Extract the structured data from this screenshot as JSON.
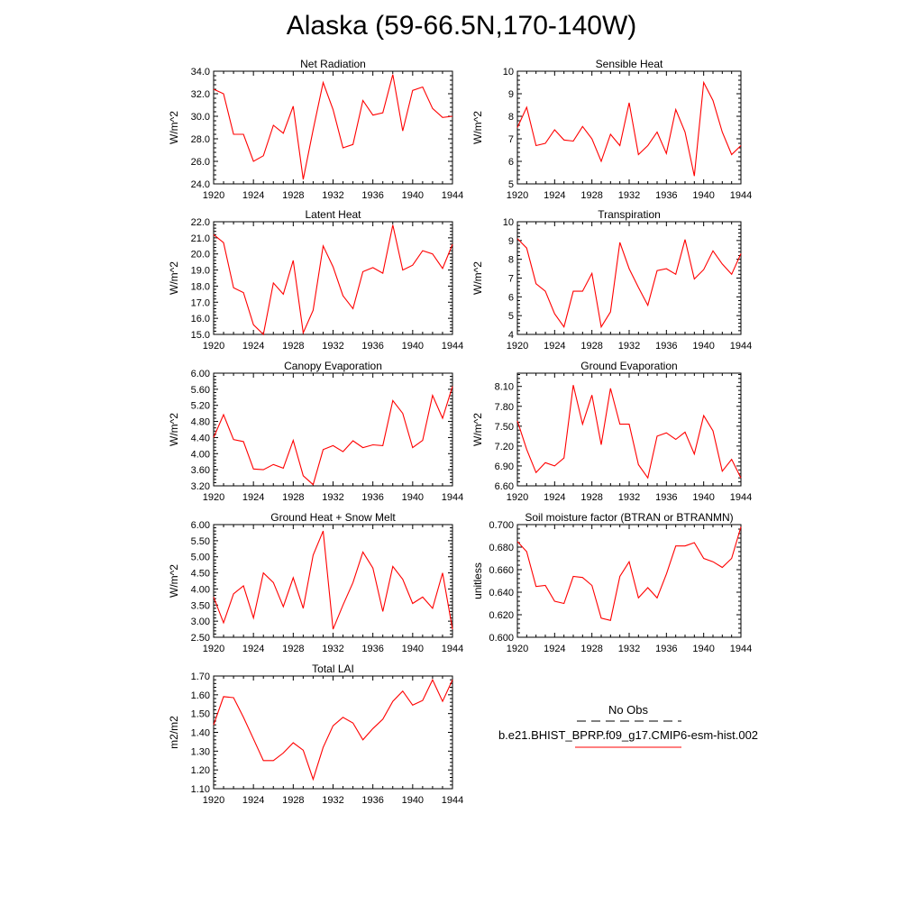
{
  "title": "Alaska (59-66.5N,170-140W)",
  "colors": {
    "model_line": "#ff0000",
    "obs_line": "#000000",
    "axis": "#000000"
  },
  "legend": {
    "obs_label": "No Obs",
    "model_label": "b.e21.BHIST_BPRP.f09_g17.CMIP6-esm-hist.002"
  },
  "chart_data": [
    {
      "type": "line",
      "title": "Net Radiation",
      "ylabel": "W/m^2",
      "xlabel": "",
      "xlim": [
        1920,
        1944
      ],
      "ylim": [
        24,
        34
      ],
      "xticks": [
        "1920",
        "1924",
        "1928",
        "1932",
        "1936",
        "1940",
        "1944"
      ],
      "yticks": [
        "24.0",
        "26.0",
        "28.0",
        "30.0",
        "32.0",
        "34.0"
      ],
      "x": [
        1920,
        1921,
        1922,
        1923,
        1924,
        1925,
        1926,
        1927,
        1928,
        1929,
        1930,
        1931,
        1932,
        1933,
        1934,
        1935,
        1936,
        1937,
        1938,
        1939,
        1940,
        1941,
        1942,
        1943,
        1944
      ],
      "series": [
        {
          "values": [
            32.4,
            32.0,
            28.4,
            28.4,
            26.0,
            26.5,
            29.2,
            28.5,
            30.9,
            24.4,
            28.8,
            33.0,
            30.6,
            27.2,
            27.5,
            31.4,
            30.1,
            30.3,
            33.7,
            28.7,
            32.3,
            32.6,
            30.7,
            29.9,
            30.0
          ]
        }
      ]
    },
    {
      "type": "line",
      "title": "Sensible Heat",
      "ylabel": "W/m^2",
      "xlabel": "",
      "xlim": [
        1920,
        1944
      ],
      "ylim": [
        5,
        10
      ],
      "xticks": [
        "1920",
        "1924",
        "1928",
        "1932",
        "1936",
        "1940",
        "1944"
      ],
      "yticks": [
        "5",
        "6",
        "7",
        "8",
        "9",
        "10"
      ],
      "x": [
        1920,
        1921,
        1922,
        1923,
        1924,
        1925,
        1926,
        1927,
        1928,
        1929,
        1930,
        1931,
        1932,
        1933,
        1934,
        1935,
        1936,
        1937,
        1938,
        1939,
        1940,
        1941,
        1942,
        1943,
        1944
      ],
      "series": [
        {
          "values": [
            7.5,
            8.4,
            6.7,
            6.8,
            7.4,
            6.95,
            6.9,
            7.55,
            7.0,
            6.0,
            7.2,
            6.7,
            8.6,
            6.3,
            6.7,
            7.3,
            6.35,
            8.3,
            7.3,
            5.35,
            9.5,
            8.7,
            7.3,
            6.3,
            6.7
          ]
        }
      ]
    },
    {
      "type": "line",
      "title": "Latent Heat",
      "ylabel": "W/m^2",
      "xlabel": "",
      "xlim": [
        1920,
        1944
      ],
      "ylim": [
        15,
        22
      ],
      "xticks": [
        "1920",
        "1924",
        "1928",
        "1932",
        "1936",
        "1940",
        "1944"
      ],
      "yticks": [
        "15.0",
        "16.0",
        "17.0",
        "18.0",
        "19.0",
        "20.0",
        "21.0",
        "22.0"
      ],
      "x": [
        1920,
        1921,
        1922,
        1923,
        1924,
        1925,
        1926,
        1927,
        1928,
        1929,
        1930,
        1931,
        1932,
        1933,
        1934,
        1935,
        1936,
        1937,
        1938,
        1939,
        1940,
        1941,
        1942,
        1943,
        1944
      ],
      "series": [
        {
          "values": [
            21.2,
            20.7,
            17.9,
            17.6,
            15.6,
            15.0,
            18.2,
            17.5,
            19.6,
            15.1,
            16.5,
            20.5,
            19.2,
            17.4,
            16.6,
            18.9,
            19.15,
            18.8,
            21.8,
            19.0,
            19.3,
            20.2,
            20.0,
            19.1,
            20.6
          ]
        }
      ]
    },
    {
      "type": "line",
      "title": "Transpiration",
      "ylabel": "W/m^2",
      "xlabel": "",
      "xlim": [
        1920,
        1944
      ],
      "ylim": [
        4,
        10
      ],
      "xticks": [
        "1920",
        "1924",
        "1928",
        "1932",
        "1936",
        "1940",
        "1944"
      ],
      "yticks": [
        "4",
        "5",
        "6",
        "7",
        "8",
        "9",
        "10"
      ],
      "x": [
        1920,
        1921,
        1922,
        1923,
        1924,
        1925,
        1926,
        1927,
        1928,
        1929,
        1930,
        1931,
        1932,
        1933,
        1934,
        1935,
        1936,
        1937,
        1938,
        1939,
        1940,
        1941,
        1942,
        1943,
        1944
      ],
      "series": [
        {
          "values": [
            9.1,
            8.6,
            6.7,
            6.3,
            5.1,
            4.4,
            6.3,
            6.3,
            7.25,
            4.4,
            5.2,
            8.9,
            7.5,
            6.5,
            5.55,
            7.4,
            7.5,
            7.2,
            9.05,
            6.95,
            7.45,
            8.45,
            7.75,
            7.2,
            8.3
          ]
        }
      ]
    },
    {
      "type": "line",
      "title": "Canopy Evaporation",
      "ylabel": "W/m^2",
      "xlabel": "",
      "xlim": [
        1920,
        1944
      ],
      "ylim": [
        3.2,
        6.0
      ],
      "xticks": [
        "1920",
        "1924",
        "1928",
        "1932",
        "1936",
        "1940",
        "1944"
      ],
      "yticks": [
        "3.20",
        "3.60",
        "4.00",
        "4.40",
        "4.80",
        "5.20",
        "5.60",
        "6.00"
      ],
      "x": [
        1920,
        1921,
        1922,
        1923,
        1924,
        1925,
        1926,
        1927,
        1928,
        1929,
        1930,
        1931,
        1932,
        1933,
        1934,
        1935,
        1936,
        1937,
        1938,
        1939,
        1940,
        1941,
        1942,
        1943,
        1944
      ],
      "series": [
        {
          "values": [
            4.4,
            4.97,
            4.35,
            4.3,
            3.62,
            3.6,
            3.73,
            3.64,
            4.33,
            3.45,
            3.23,
            4.1,
            4.2,
            4.05,
            4.32,
            4.15,
            4.22,
            4.2,
            5.32,
            5.0,
            4.15,
            4.33,
            5.45,
            4.88,
            5.67
          ]
        }
      ]
    },
    {
      "type": "line",
      "title": "Ground Evaporation",
      "ylabel": "W/m^2",
      "xlabel": "",
      "xlim": [
        1920,
        1944
      ],
      "ylim": [
        6.6,
        8.3
      ],
      "xticks": [
        "1920",
        "1924",
        "1928",
        "1932",
        "1936",
        "1940",
        "1944"
      ],
      "yticks": [
        "6.60",
        "6.90",
        "7.20",
        "7.50",
        "7.80",
        "8.10"
      ],
      "x": [
        1920,
        1921,
        1922,
        1923,
        1924,
        1925,
        1926,
        1927,
        1928,
        1929,
        1930,
        1931,
        1932,
        1933,
        1934,
        1935,
        1936,
        1937,
        1938,
        1939,
        1940,
        1941,
        1942,
        1943,
        1944
      ],
      "series": [
        {
          "values": [
            7.58,
            7.15,
            6.8,
            6.95,
            6.9,
            7.02,
            8.12,
            7.53,
            7.97,
            7.22,
            8.07,
            7.53,
            7.53,
            6.92,
            6.72,
            7.35,
            7.4,
            7.3,
            7.41,
            7.08,
            7.66,
            7.43,
            6.82,
            7.0,
            6.72
          ]
        }
      ]
    },
    {
      "type": "line",
      "title": "Ground Heat + Snow Melt",
      "ylabel": "W/m^2",
      "xlabel": "",
      "xlim": [
        1920,
        1944
      ],
      "ylim": [
        2.5,
        6.0
      ],
      "xticks": [
        "1920",
        "1924",
        "1928",
        "1932",
        "1936",
        "1940",
        "1944"
      ],
      "yticks": [
        "2.50",
        "3.00",
        "3.50",
        "4.00",
        "4.50",
        "5.00",
        "5.50",
        "6.00"
      ],
      "x": [
        1920,
        1921,
        1922,
        1923,
        1924,
        1925,
        1926,
        1927,
        1928,
        1929,
        1930,
        1931,
        1932,
        1933,
        1934,
        1935,
        1936,
        1937,
        1938,
        1939,
        1940,
        1941,
        1942,
        1943,
        1944
      ],
      "series": [
        {
          "values": [
            3.75,
            2.95,
            3.85,
            4.1,
            3.1,
            4.5,
            4.2,
            3.45,
            4.35,
            3.4,
            5.05,
            5.8,
            2.75,
            3.5,
            4.2,
            5.15,
            4.65,
            3.3,
            4.7,
            4.3,
            3.55,
            3.75,
            3.4,
            4.5,
            2.75
          ]
        }
      ]
    },
    {
      "type": "line",
      "title": "Soil moisture factor (BTRAN or BTRANMN)",
      "ylabel": "unitless",
      "xlabel": "",
      "xlim": [
        1920,
        1944
      ],
      "ylim": [
        0.6,
        0.7
      ],
      "xticks": [
        "1920",
        "1924",
        "1928",
        "1932",
        "1936",
        "1940",
        "1944"
      ],
      "yticks": [
        "0.600",
        "0.620",
        "0.640",
        "0.660",
        "0.680",
        "0.700"
      ],
      "x": [
        1920,
        1921,
        1922,
        1923,
        1924,
        1925,
        1926,
        1927,
        1928,
        1929,
        1930,
        1931,
        1932,
        1933,
        1934,
        1935,
        1936,
        1937,
        1938,
        1939,
        1940,
        1941,
        1942,
        1943,
        1944
      ],
      "series": [
        {
          "values": [
            0.685,
            0.676,
            0.645,
            0.646,
            0.632,
            0.63,
            0.654,
            0.653,
            0.646,
            0.617,
            0.615,
            0.654,
            0.667,
            0.635,
            0.644,
            0.635,
            0.656,
            0.681,
            0.681,
            0.684,
            0.67,
            0.667,
            0.662,
            0.67,
            0.698
          ]
        }
      ]
    },
    {
      "type": "line",
      "title": "Total LAI",
      "ylabel": "m2/m2",
      "xlabel": "",
      "xlim": [
        1920,
        1944
      ],
      "ylim": [
        1.1,
        1.7
      ],
      "xticks": [
        "1920",
        "1924",
        "1928",
        "1932",
        "1936",
        "1940",
        "1944"
      ],
      "yticks": [
        "1.10",
        "1.20",
        "1.30",
        "1.40",
        "1.50",
        "1.60",
        "1.70"
      ],
      "x": [
        1920,
        1921,
        1922,
        1923,
        1924,
        1925,
        1926,
        1927,
        1928,
        1929,
        1930,
        1931,
        1932,
        1933,
        1934,
        1935,
        1936,
        1937,
        1938,
        1939,
        1940,
        1941,
        1942,
        1943,
        1944
      ],
      "series": [
        {
          "values": [
            1.44,
            1.59,
            1.585,
            1.48,
            1.365,
            1.25,
            1.25,
            1.29,
            1.345,
            1.305,
            1.15,
            1.32,
            1.435,
            1.48,
            1.45,
            1.36,
            1.42,
            1.47,
            1.565,
            1.62,
            1.545,
            1.57,
            1.68,
            1.565,
            1.68
          ]
        }
      ]
    }
  ]
}
